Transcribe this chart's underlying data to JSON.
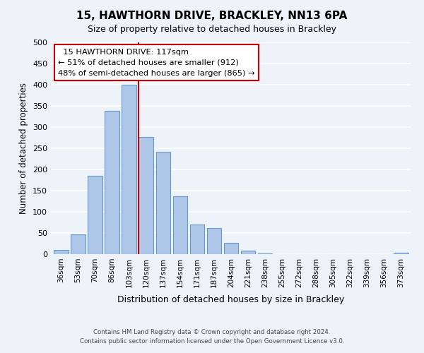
{
  "title": "15, HAWTHORN DRIVE, BRACKLEY, NN13 6PA",
  "subtitle": "Size of property relative to detached houses in Brackley",
  "xlabel": "Distribution of detached houses by size in Brackley",
  "ylabel": "Number of detached properties",
  "bar_labels": [
    "36sqm",
    "53sqm",
    "70sqm",
    "86sqm",
    "103sqm",
    "120sqm",
    "137sqm",
    "154sqm",
    "171sqm",
    "187sqm",
    "204sqm",
    "221sqm",
    "238sqm",
    "255sqm",
    "272sqm",
    "288sqm",
    "305sqm",
    "322sqm",
    "339sqm",
    "356sqm",
    "373sqm"
  ],
  "bar_heights": [
    10,
    47,
    185,
    338,
    400,
    277,
    242,
    137,
    70,
    62,
    27,
    8,
    2,
    0,
    0,
    0,
    0,
    0,
    0,
    0,
    3
  ],
  "bar_color": "#aec6e8",
  "bar_edge_color": "#6699cc",
  "vline_pos": 4.575,
  "vline_color": "#cc0000",
  "annotation_title": "15 HAWTHORN DRIVE: 117sqm",
  "annotation_line1": "← 51% of detached houses are smaller (912)",
  "annotation_line2": "48% of semi-detached houses are larger (865) →",
  "annotation_box_color": "#ffffff",
  "annotation_box_edge_color": "#cc0000",
  "ylim": [
    0,
    500
  ],
  "yticks": [
    0,
    50,
    100,
    150,
    200,
    250,
    300,
    350,
    400,
    450,
    500
  ],
  "footer_line1": "Contains HM Land Registry data © Crown copyright and database right 2024.",
  "footer_line2": "Contains public sector information licensed under the Open Government Licence v3.0.",
  "bg_color": "#eef2f9",
  "plot_bg_color": "#eef2f9",
  "grid_color": "#ffffff"
}
